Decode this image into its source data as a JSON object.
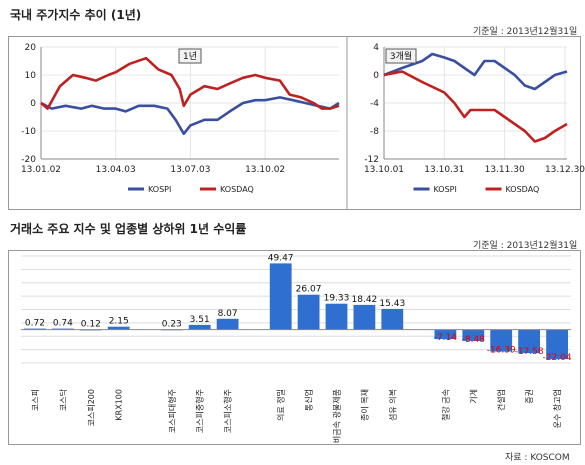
{
  "page": {
    "title1": "국내 주가지수 추이 (1년)",
    "date_note1": "기준일 : 2013년12월31일",
    "title2": "거래소 주요 지수 및 업종별 상하위 1년 수익률",
    "date_note2": "기준일 : 2013년12월31일",
    "source": "자료 : KOSCOM"
  },
  "colors": {
    "kospi": "#3a4fa0",
    "kosdaq": "#c02020",
    "bar": "#2e6fd0",
    "negative_label": "#e00000"
  },
  "chart_data": [
    {
      "type": "line",
      "badge": "1년",
      "ylim": [
        -20,
        20
      ],
      "yticks": [
        -20,
        -10,
        0,
        10,
        20
      ],
      "xticks": [
        "13.01.02",
        "13.04.03",
        "13.07.03",
        "13.10.02"
      ],
      "xlim": [
        "13.01.02",
        "13.12.31"
      ],
      "grid": true,
      "legend_position": "bottom",
      "series": [
        {
          "name": "KOSPI",
          "points": [
            [
              "13.01.02",
              0
            ],
            [
              "13.01.15",
              -2
            ],
            [
              "13.02.01",
              -1
            ],
            [
              "13.02.20",
              -2
            ],
            [
              "13.03.05",
              -1
            ],
            [
              "13.03.20",
              -2
            ],
            [
              "13.04.03",
              -2
            ],
            [
              "13.04.15",
              -3
            ],
            [
              "13.05.01",
              -1
            ],
            [
              "13.05.20",
              -1
            ],
            [
              "13.06.05",
              -2
            ],
            [
              "13.06.15",
              -6
            ],
            [
              "13.06.25",
              -11
            ],
            [
              "13.07.03",
              -8
            ],
            [
              "13.07.20",
              -6
            ],
            [
              "13.08.05",
              -6
            ],
            [
              "13.08.20",
              -3
            ],
            [
              "13.09.05",
              0
            ],
            [
              "13.09.20",
              1
            ],
            [
              "13.10.02",
              1
            ],
            [
              "13.10.20",
              2
            ],
            [
              "13.11.05",
              1
            ],
            [
              "13.11.20",
              0
            ],
            [
              "13.12.05",
              -1
            ],
            [
              "13.12.20",
              -2
            ],
            [
              "13.12.31",
              0
            ]
          ]
        },
        {
          "name": "KOSDAQ",
          "points": [
            [
              "13.01.02",
              0
            ],
            [
              "13.01.10",
              -2
            ],
            [
              "13.01.25",
              6
            ],
            [
              "13.02.10",
              10
            ],
            [
              "13.02.25",
              9
            ],
            [
              "13.03.10",
              8
            ],
            [
              "13.03.25",
              10
            ],
            [
              "13.04.03",
              11
            ],
            [
              "13.04.20",
              14
            ],
            [
              "13.05.10",
              16
            ],
            [
              "13.05.25",
              12
            ],
            [
              "13.06.10",
              10
            ],
            [
              "13.06.20",
              5
            ],
            [
              "13.06.25",
              -1
            ],
            [
              "13.07.03",
              3
            ],
            [
              "13.07.20",
              6
            ],
            [
              "13.08.05",
              5
            ],
            [
              "13.08.20",
              7
            ],
            [
              "13.09.05",
              9
            ],
            [
              "13.09.20",
              10
            ],
            [
              "13.10.02",
              9
            ],
            [
              "13.10.20",
              8
            ],
            [
              "13.11.01",
              3
            ],
            [
              "13.11.15",
              2
            ],
            [
              "13.11.30",
              0
            ],
            [
              "13.12.10",
              -2
            ],
            [
              "13.12.20",
              -2
            ],
            [
              "13.12.31",
              -1
            ]
          ]
        }
      ]
    },
    {
      "type": "line",
      "badge": "3개월",
      "ylim": [
        -12,
        4
      ],
      "yticks": [
        -12,
        -8,
        -4,
        0,
        4
      ],
      "xticks": [
        "13.10.01",
        "13.10.31",
        "13.11.30",
        "13.12.30"
      ],
      "xlim": [
        "13.10.01",
        "13.12.31"
      ],
      "grid": true,
      "legend_position": "bottom",
      "series": [
        {
          "name": "KOSPI",
          "points": [
            [
              "13.10.01",
              0
            ],
            [
              "13.10.10",
              1
            ],
            [
              "13.10.20",
              2
            ],
            [
              "13.10.25",
              3
            ],
            [
              "13.10.31",
              2.5
            ],
            [
              "13.11.05",
              2
            ],
            [
              "13.11.10",
              1
            ],
            [
              "13.11.15",
              0
            ],
            [
              "13.11.20",
              2
            ],
            [
              "13.11.25",
              2
            ],
            [
              "13.11.30",
              1
            ],
            [
              "13.12.05",
              0
            ],
            [
              "13.12.10",
              -1.5
            ],
            [
              "13.12.15",
              -2
            ],
            [
              "13.12.20",
              -1
            ],
            [
              "13.12.25",
              0
            ],
            [
              "13.12.31",
              0.5
            ]
          ]
        },
        {
          "name": "KOSDAQ",
          "points": [
            [
              "13.10.01",
              0
            ],
            [
              "13.10.10",
              0.5
            ],
            [
              "13.10.20",
              -1
            ],
            [
              "13.10.31",
              -2.5
            ],
            [
              "13.11.05",
              -4
            ],
            [
              "13.11.10",
              -6
            ],
            [
              "13.11.13",
              -5
            ],
            [
              "13.11.18",
              -5
            ],
            [
              "13.11.25",
              -5
            ],
            [
              "13.11.30",
              -6
            ],
            [
              "13.12.05",
              -7
            ],
            [
              "13.12.10",
              -8
            ],
            [
              "13.12.15",
              -9.5
            ],
            [
              "13.12.20",
              -9
            ],
            [
              "13.12.25",
              -8
            ],
            [
              "13.12.31",
              -7
            ]
          ]
        }
      ]
    },
    {
      "type": "bar",
      "categories": [
        "코스피",
        "코스닥",
        "코스피200",
        "KRX100",
        "코스피대형주",
        "코스피중형주",
        "코스피소형주",
        "의료 정밀",
        "통신업",
        "비금속 광물제품",
        "종이 목재",
        "섬유 의복",
        "철강 금속",
        "기계",
        "건설업",
        "증권",
        "운수 창고업"
      ],
      "groups": [
        [
          0,
          1,
          2,
          3
        ],
        [
          4,
          5,
          6
        ],
        [
          7,
          8,
          9,
          10,
          11
        ],
        [
          12,
          13,
          14,
          15,
          16
        ]
      ],
      "values": [
        0.72,
        0.74,
        0.12,
        2.15,
        0.23,
        3.51,
        8.07,
        49.47,
        26.07,
        19.33,
        18.42,
        15.43,
        -7.14,
        -8.48,
        -16.39,
        -17.58,
        -22.04
      ],
      "value_labels": [
        "0.72",
        "0.74",
        "0.12",
        "2.15",
        "0.23",
        "3.51",
        "8.07",
        "49.47",
        "26.07",
        "19.33",
        "18.42",
        "15.43",
        "-7.14",
        "-8.48",
        "-16.39",
        "-17.58",
        "-22.04"
      ],
      "ylim": [
        -25,
        55
      ],
      "grid": true
    }
  ]
}
